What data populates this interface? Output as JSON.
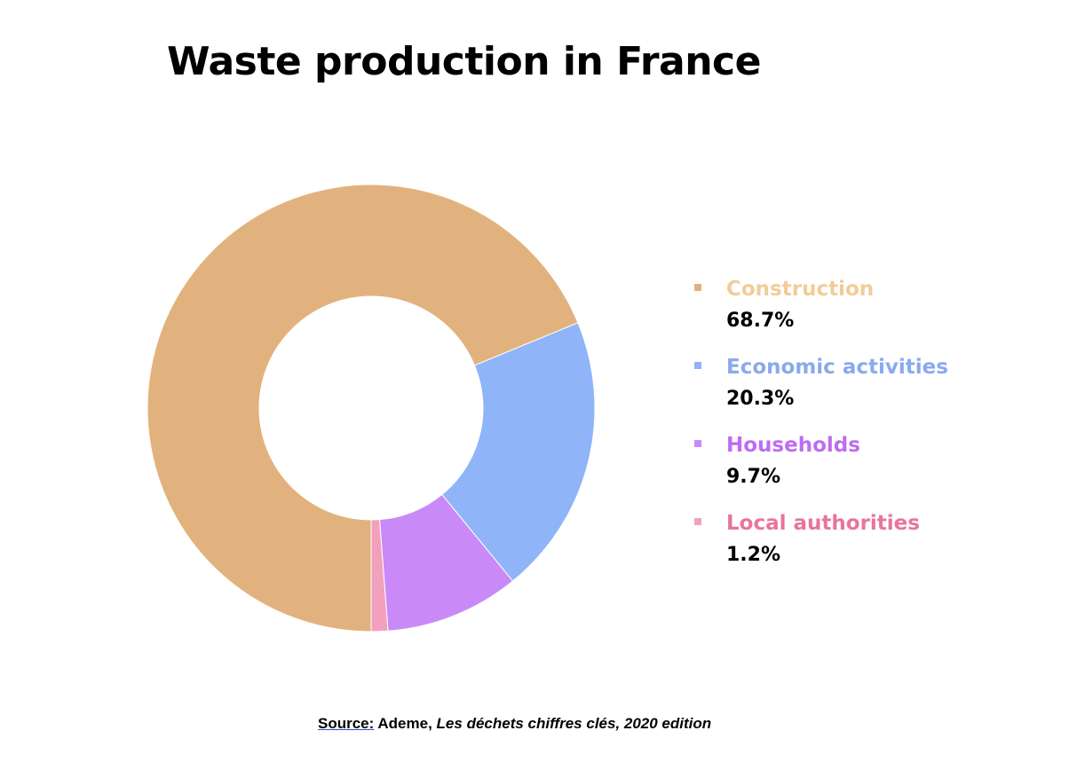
{
  "title": "Waste production in France",
  "source": {
    "label": "Source:",
    "publisher": "Ademe,",
    "title": "Les déchets chiffres clés, 2020 edition"
  },
  "chart_data": {
    "type": "pie",
    "title": "Waste production in France",
    "donut": true,
    "legend_position": "right",
    "labels": [
      "Construction",
      "Economic activities",
      "Households",
      "Local authorities"
    ],
    "values": [
      68.7,
      20.3,
      9.7,
      1.2
    ],
    "value_labels": [
      "68.7%",
      "20.3%",
      "9.7%",
      "1.2%"
    ],
    "colors": [
      "#e2b27e",
      "#8fb4f8",
      "#c98af8",
      "#f2a1bd"
    ],
    "legend_label_colors": [
      "#f2cc98",
      "#8aa9ee",
      "#be6cf0",
      "#e8749f"
    ]
  }
}
